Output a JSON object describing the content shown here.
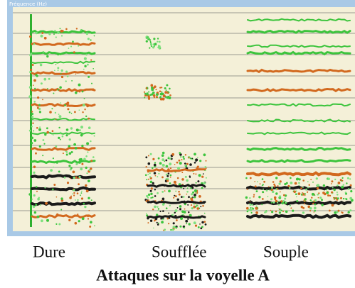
{
  "axis_label": "Fréquence (Hz)",
  "captions": [
    "Dure",
    "Soufflée",
    "Souple"
  ],
  "title": "Attaques sur la voyelle A"
}
